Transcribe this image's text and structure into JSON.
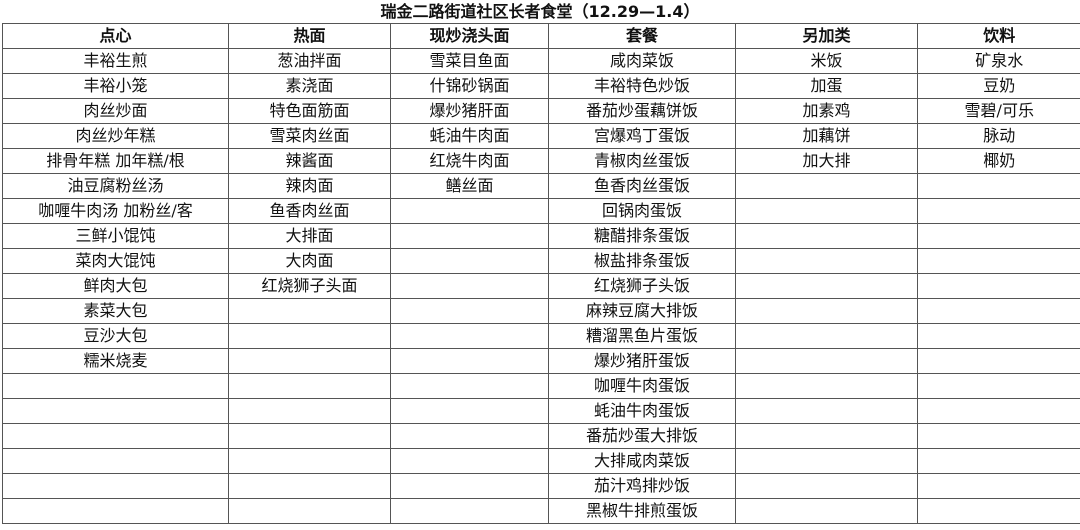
{
  "title": "瑞金二路街道社区长者食堂（12.29—1.4）",
  "columns": [
    {
      "header": "点心",
      "items": [
        "丰裕生煎",
        "丰裕小笼",
        "肉丝炒面",
        "肉丝炒年糕",
        "排骨年糕 加年糕/根",
        "油豆腐粉丝汤",
        "咖喱牛肉汤 加粉丝/客",
        "三鲜小馄饨",
        "菜肉大馄饨",
        "鲜肉大包",
        "素菜大包",
        "豆沙大包",
        "糯米烧麦"
      ]
    },
    {
      "header": "热面",
      "items": [
        "葱油拌面",
        "素浇面",
        "特色面筋面",
        "雪菜肉丝面",
        "辣酱面",
        "辣肉面",
        "鱼香肉丝面",
        "大排面",
        "大肉面",
        "红烧狮子头面"
      ]
    },
    {
      "header": "现炒浇头面",
      "items": [
        "雪菜目鱼面",
        "什锦砂锅面",
        "爆炒猪肝面",
        "蚝油牛肉面",
        "红烧牛肉面",
        "鳝丝面"
      ]
    },
    {
      "header": "套餐",
      "items": [
        "咸肉菜饭",
        "丰裕特色炒饭",
        "番茄炒蛋藕饼饭",
        "宫爆鸡丁蛋饭",
        "青椒肉丝蛋饭",
        "鱼香肉丝蛋饭",
        "回锅肉蛋饭",
        "糖醋排条蛋饭",
        "椒盐排条蛋饭",
        "红烧狮子头饭",
        "麻辣豆腐大排饭",
        "糟溜黑鱼片蛋饭",
        "爆炒猪肝蛋饭",
        "咖喱牛肉蛋饭",
        "蚝油牛肉蛋饭",
        "番茄炒蛋大排饭",
        "大排咸肉菜饭",
        "茄汁鸡排炒饭",
        "黑椒牛排煎蛋饭"
      ]
    },
    {
      "header": "另加类",
      "items": [
        "米饭",
        "加蛋",
        "加素鸡",
        "加藕饼",
        "加大排"
      ]
    },
    {
      "header": "饮料",
      "items": [
        "矿泉水",
        "豆奶",
        "雪碧/可乐",
        "脉动",
        "椰奶"
      ]
    }
  ]
}
